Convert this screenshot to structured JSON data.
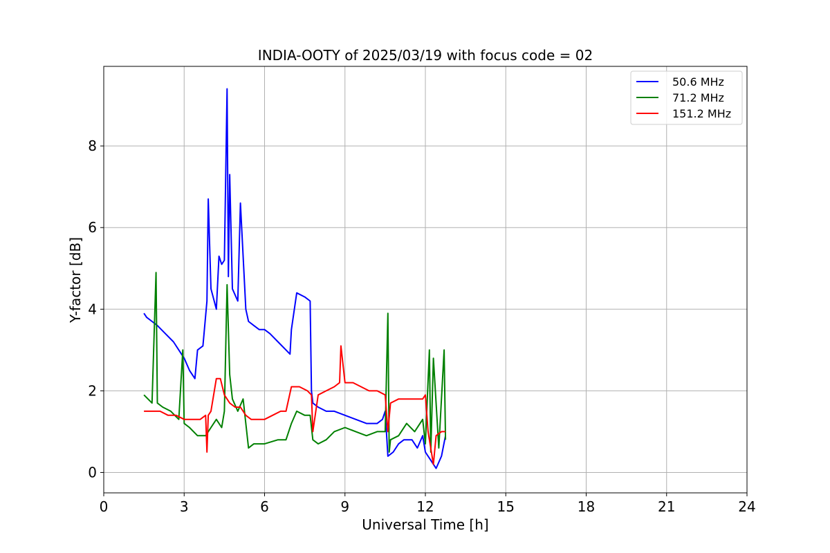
{
  "chart_data": {
    "type": "line",
    "title": "INDIA-OOTY of 2025/03/19 with focus code = 02",
    "xlabel": "Universal Time [h]",
    "ylabel": "Y-factor [dB]",
    "xlim": [
      0,
      24
    ],
    "ylim": [
      -0.5,
      9.95
    ],
    "xticks": [
      0,
      3,
      6,
      9,
      12,
      15,
      18,
      21,
      24
    ],
    "yticks": [
      0,
      2,
      4,
      6,
      8
    ],
    "grid": true,
    "legend_position": "top-right",
    "series": [
      {
        "name": "50.6 MHz",
        "color": "#0000ff",
        "x": [
          1.5,
          1.6,
          1.8,
          2.0,
          2.3,
          2.6,
          2.9,
          3.0,
          3.2,
          3.4,
          3.5,
          3.7,
          3.85,
          3.9,
          4.0,
          4.2,
          4.3,
          4.4,
          4.5,
          4.6,
          4.65,
          4.7,
          4.8,
          5.0,
          5.1,
          5.3,
          5.4,
          5.6,
          5.8,
          6.0,
          6.2,
          6.5,
          6.8,
          6.95,
          7.0,
          7.2,
          7.5,
          7.7,
          7.75,
          7.8,
          8.0,
          8.3,
          8.6,
          9.0,
          9.4,
          9.8,
          10.2,
          10.4,
          10.5,
          10.6,
          10.8,
          11.0,
          11.2,
          11.5,
          11.7,
          11.9,
          12.0,
          12.2,
          12.4,
          12.6,
          12.75
        ],
        "y": [
          3.9,
          3.8,
          3.7,
          3.6,
          3.4,
          3.2,
          2.9,
          2.8,
          2.5,
          2.3,
          3.0,
          3.1,
          4.2,
          6.7,
          4.5,
          4.0,
          5.3,
          5.1,
          5.2,
          9.4,
          4.8,
          7.3,
          4.5,
          4.2,
          6.6,
          4.0,
          3.7,
          3.6,
          3.5,
          3.5,
          3.4,
          3.2,
          3.0,
          2.9,
          3.5,
          4.4,
          4.3,
          4.2,
          2.0,
          1.7,
          1.6,
          1.5,
          1.5,
          1.4,
          1.3,
          1.2,
          1.2,
          1.3,
          1.5,
          0.4,
          0.5,
          0.7,
          0.8,
          0.8,
          0.6,
          0.9,
          0.5,
          0.3,
          0.1,
          0.4,
          0.9
        ]
      },
      {
        "name": "71.2 MHz",
        "color": "#008000",
        "x": [
          1.5,
          1.8,
          1.95,
          2.0,
          2.2,
          2.5,
          2.8,
          2.95,
          3.0,
          3.2,
          3.5,
          3.8,
          4.0,
          4.2,
          4.4,
          4.5,
          4.6,
          4.7,
          4.8,
          5.0,
          5.2,
          5.4,
          5.6,
          6.0,
          6.5,
          6.8,
          7.0,
          7.2,
          7.5,
          7.7,
          7.8,
          8.0,
          8.3,
          8.6,
          9.0,
          9.4,
          9.8,
          10.2,
          10.5,
          10.6,
          10.65,
          10.7,
          11.0,
          11.3,
          11.6,
          11.9,
          12.0,
          12.15,
          12.2,
          12.3,
          12.5,
          12.7,
          12.75
        ],
        "y": [
          1.9,
          1.7,
          4.9,
          1.7,
          1.6,
          1.5,
          1.3,
          3.0,
          1.2,
          1.1,
          0.9,
          0.9,
          1.1,
          1.3,
          1.1,
          1.5,
          4.6,
          2.4,
          1.8,
          1.5,
          1.8,
          0.6,
          0.7,
          0.7,
          0.8,
          0.8,
          1.2,
          1.5,
          1.4,
          1.4,
          0.8,
          0.7,
          0.8,
          1.0,
          1.1,
          1.0,
          0.9,
          1.0,
          1.0,
          3.9,
          0.5,
          0.8,
          0.9,
          1.2,
          1.0,
          1.3,
          0.7,
          3.0,
          0.5,
          2.8,
          0.6,
          3.0,
          0.8
        ]
      },
      {
        "name": "151.2 MHz",
        "color": "#ff0000",
        "x": [
          1.5,
          1.8,
          2.1,
          2.4,
          2.7,
          3.0,
          3.3,
          3.6,
          3.8,
          3.85,
          3.9,
          4.0,
          4.2,
          4.35,
          4.5,
          4.7,
          4.9,
          5.1,
          5.3,
          5.5,
          5.7,
          6.0,
          6.3,
          6.6,
          6.8,
          7.0,
          7.3,
          7.6,
          7.75,
          7.8,
          8.0,
          8.3,
          8.6,
          8.8,
          8.85,
          9.0,
          9.3,
          9.6,
          9.9,
          10.2,
          10.5,
          10.6,
          10.7,
          11.0,
          11.3,
          11.6,
          11.9,
          12.0,
          12.1,
          12.3,
          12.4,
          12.6,
          12.75
        ],
        "y": [
          1.5,
          1.5,
          1.5,
          1.4,
          1.4,
          1.3,
          1.3,
          1.3,
          1.4,
          0.5,
          1.4,
          1.5,
          2.3,
          2.3,
          1.9,
          1.7,
          1.6,
          1.6,
          1.4,
          1.3,
          1.3,
          1.3,
          1.4,
          1.5,
          1.5,
          2.1,
          2.1,
          2.0,
          1.9,
          1.0,
          1.9,
          2.0,
          2.1,
          2.2,
          3.1,
          2.2,
          2.2,
          2.1,
          2.0,
          2.0,
          1.9,
          1.0,
          1.7,
          1.8,
          1.8,
          1.8,
          1.8,
          1.9,
          1.0,
          0.2,
          0.9,
          1.0,
          1.0
        ]
      }
    ]
  }
}
